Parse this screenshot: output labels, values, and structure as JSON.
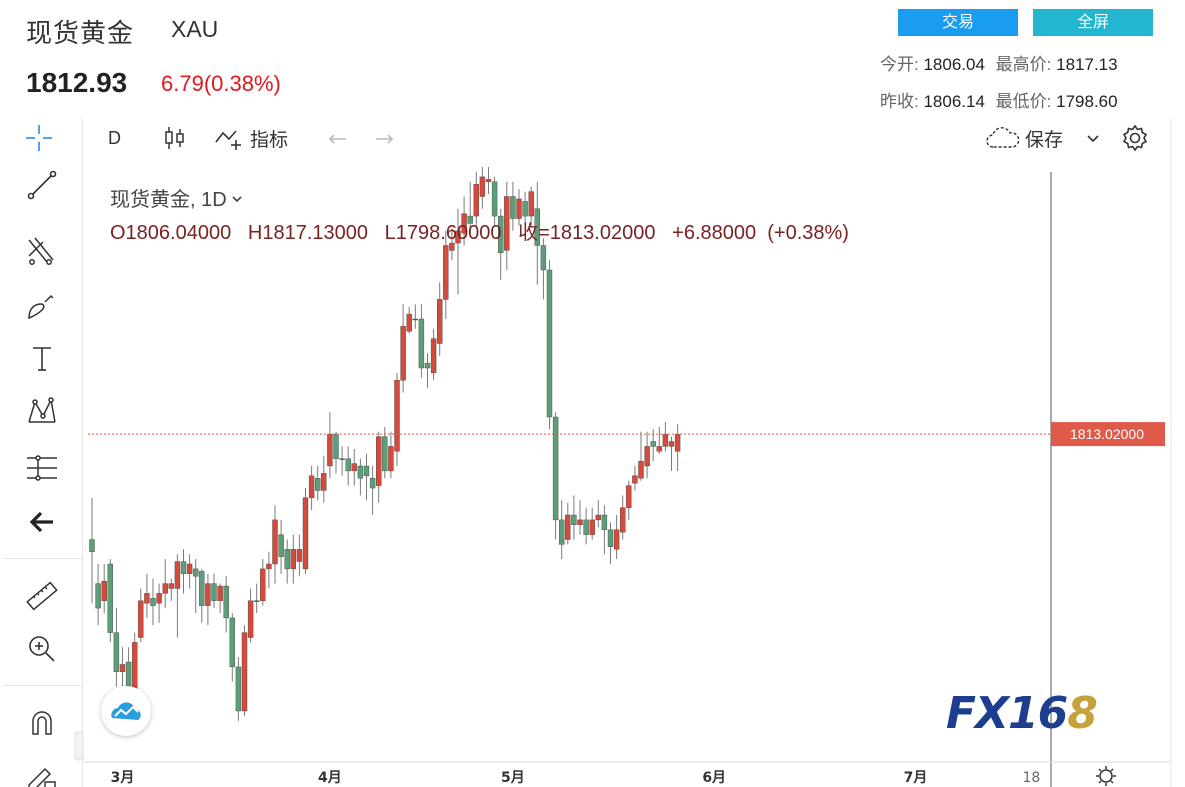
{
  "header": {
    "title": "现货黄金",
    "code": "XAU",
    "price": "1812.93",
    "change": "6.79(0.38%)",
    "trade_button": "交易",
    "fullscreen_button": "全屏",
    "open_label": "今开:",
    "open_value": "1806.04",
    "high_label": "最高价:",
    "high_value": "1817.13",
    "prev_close_label": "昨收:",
    "prev_close_value": "1806.14",
    "low_label": "最低价:",
    "low_value": "1798.60"
  },
  "toolbar": {
    "interval": "D",
    "indicators_label": "指标",
    "save_label": "保存"
  },
  "left_tools": [
    "crosshair-icon",
    "trendline-icon",
    "pitchfork-icon",
    "brush-icon",
    "text-icon",
    "pattern-icon",
    "fib-icon",
    "back-arrow-icon",
    "ruler-icon",
    "zoom-in-icon",
    "magnet-icon",
    "pencil-lock-icon"
  ],
  "legend": {
    "title": "现货黄金, 1D",
    "ohlc": "O1806.04000   H1817.13000   L1798.60000   收=1813.02000   +6.88000  (+0.38%)"
  },
  "colors": {
    "up": "#d44a3c",
    "down": "#5c9e78",
    "price_line": "#e05a4a",
    "accent_blue": "#1a9cf0",
    "accent_cyan": "#22b6d0"
  },
  "logo_text": "FX16",
  "logo_accent": "8",
  "chart_data": {
    "type": "candlestick",
    "symbol": "XAU",
    "interval": "1D",
    "x_labels": [
      {
        "label": "3月",
        "index": 5
      },
      {
        "label": "4月",
        "index": 39
      },
      {
        "label": "5月",
        "index": 69
      },
      {
        "label": "6月",
        "index": 102
      },
      {
        "label": "7月",
        "index": 135
      },
      {
        "label": "18",
        "index": 154
      }
    ],
    "y_range": [
      1680,
      1920
    ],
    "last_price": 1813.02,
    "last_price_label": "1813.02000",
    "candles": [
      [
        1770,
        1765,
        1787,
        1744
      ],
      [
        1752,
        1742,
        1760,
        1735
      ],
      [
        1745,
        1753,
        1760,
        1740
      ],
      [
        1760,
        1732,
        1762,
        1728
      ],
      [
        1732,
        1716,
        1742,
        1710
      ],
      [
        1716,
        1719,
        1726,
        1708
      ],
      [
        1720,
        1708,
        1726,
        1700
      ],
      [
        1705,
        1728,
        1732,
        1702
      ],
      [
        1730,
        1745,
        1750,
        1728
      ],
      [
        1744,
        1748,
        1756,
        1738
      ],
      [
        1746,
        1743,
        1754,
        1735
      ],
      [
        1744,
        1748,
        1752,
        1736
      ],
      [
        1748,
        1752,
        1762,
        1742
      ],
      [
        1750,
        1752,
        1754,
        1745
      ],
      [
        1750,
        1761,
        1764,
        1730
      ],
      [
        1761,
        1756,
        1766,
        1748
      ],
      [
        1756,
        1760,
        1764,
        1750
      ],
      [
        1758,
        1755,
        1762,
        1740
      ],
      [
        1757,
        1743,
        1758,
        1736
      ],
      [
        1743,
        1752,
        1756,
        1735
      ],
      [
        1752,
        1745,
        1756,
        1742
      ],
      [
        1745,
        1751,
        1752,
        1740
      ],
      [
        1751,
        1738,
        1755,
        1732
      ],
      [
        1738,
        1718,
        1740,
        1712
      ],
      [
        1718,
        1700,
        1722,
        1696
      ],
      [
        1700,
        1732,
        1735,
        1698
      ],
      [
        1730,
        1745,
        1750,
        1728
      ],
      [
        1745,
        1745,
        1752,
        1740
      ],
      [
        1745,
        1758,
        1762,
        1743
      ],
      [
        1758,
        1760,
        1765,
        1750
      ],
      [
        1760,
        1778,
        1784,
        1752
      ],
      [
        1772,
        1763,
        1778,
        1756
      ],
      [
        1766,
        1758,
        1770,
        1752
      ],
      [
        1758,
        1766,
        1772,
        1752
      ],
      [
        1761,
        1766,
        1772,
        1755
      ],
      [
        1758,
        1787,
        1791,
        1756
      ],
      [
        1787,
        1796,
        1800,
        1782
      ],
      [
        1795,
        1790,
        1800,
        1786
      ],
      [
        1790,
        1797,
        1804,
        1785
      ],
      [
        1800,
        1813,
        1822,
        1795
      ],
      [
        1813,
        1803,
        1814,
        1797
      ],
      [
        1803,
        1803,
        1808,
        1796
      ],
      [
        1803,
        1798,
        1808,
        1792
      ],
      [
        1798,
        1801,
        1807,
        1792
      ],
      [
        1800,
        1795,
        1803,
        1788
      ],
      [
        1800,
        1796,
        1805,
        1786
      ],
      [
        1795,
        1791,
        1800,
        1780
      ],
      [
        1792,
        1812,
        1814,
        1785
      ],
      [
        1812,
        1798,
        1816,
        1795
      ],
      [
        1798,
        1808,
        1814,
        1795
      ],
      [
        1806,
        1835,
        1838,
        1800
      ],
      [
        1835,
        1857,
        1866,
        1830
      ],
      [
        1855,
        1862,
        1865,
        1854
      ],
      [
        1860,
        1860,
        1866,
        1856
      ],
      [
        1860,
        1840,
        1866,
        1836
      ],
      [
        1842,
        1840,
        1846,
        1832
      ],
      [
        1838,
        1852,
        1856,
        1835
      ],
      [
        1850,
        1868,
        1875,
        1845
      ],
      [
        1868,
        1890,
        1896,
        1860
      ],
      [
        1888,
        1891,
        1897,
        1884
      ],
      [
        1891,
        1896,
        1905,
        1870
      ],
      [
        1895,
        1903,
        1910,
        1890
      ],
      [
        1902,
        1899,
        1916,
        1895
      ],
      [
        1902,
        1915,
        1920,
        1898
      ],
      [
        1910,
        1918,
        1922,
        1905
      ],
      [
        1916,
        1917,
        1922,
        1911
      ],
      [
        1916,
        1902,
        1918,
        1898
      ],
      [
        1902,
        1887,
        1905,
        1876
      ],
      [
        1888,
        1910,
        1916,
        1880
      ],
      [
        1910,
        1901,
        1916,
        1896
      ],
      [
        1901,
        1909,
        1913,
        1898
      ],
      [
        1908,
        1902,
        1912,
        1898
      ],
      [
        1902,
        1912,
        1914,
        1898
      ],
      [
        1905,
        1890,
        1916,
        1874
      ],
      [
        1890,
        1880,
        1893,
        1868
      ],
      [
        1880,
        1820,
        1884,
        1815
      ],
      [
        1820,
        1778,
        1822,
        1770
      ],
      [
        1778,
        1768,
        1786,
        1762
      ],
      [
        1770,
        1780,
        1785,
        1768
      ],
      [
        1780,
        1776,
        1788,
        1770
      ],
      [
        1776,
        1778,
        1786,
        1772
      ],
      [
        1778,
        1772,
        1783,
        1768
      ],
      [
        1772,
        1778,
        1783,
        1770
      ],
      [
        1778,
        1780,
        1786,
        1775
      ],
      [
        1780,
        1774,
        1784,
        1764
      ],
      [
        1774,
        1767,
        1777,
        1760
      ],
      [
        1766,
        1774,
        1780,
        1762
      ],
      [
        1773,
        1783,
        1788,
        1770
      ],
      [
        1783,
        1792,
        1794,
        1778
      ],
      [
        1793,
        1796,
        1800,
        1790
      ],
      [
        1795,
        1802,
        1814,
        1794
      ],
      [
        1800,
        1808,
        1814,
        1795
      ],
      [
        1810,
        1808,
        1815,
        1802
      ],
      [
        1806,
        1808,
        1816,
        1805
      ],
      [
        1808,
        1813,
        1818,
        1806
      ],
      [
        1808,
        1810,
        1812,
        1798
      ],
      [
        1806,
        1813,
        1817,
        1798
      ]
    ]
  }
}
